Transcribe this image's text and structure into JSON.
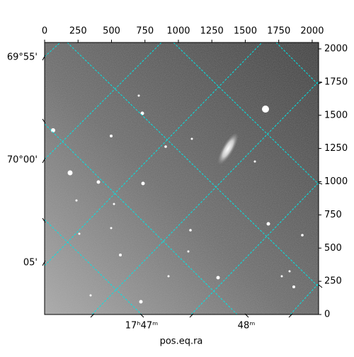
{
  "chart_data": {
    "type": "image",
    "xlabel": "pos.eq.ra",
    "xlim": [
      0,
      2048
    ],
    "xticks": [
      0,
      250,
      500,
      750,
      1000,
      1250,
      1500,
      1750,
      2000
    ],
    "ylim": [
      0,
      2048
    ],
    "yticks": [
      0,
      250,
      500,
      750,
      1000,
      1250,
      1500,
      1750,
      2000
    ],
    "world_y_labels": [
      "69°55'",
      "70°00'",
      "05'"
    ],
    "world_x_labels": [
      "17ʰ47ᵐ",
      "48ᵐ"
    ],
    "grid_color": "#00e5e5"
  }
}
